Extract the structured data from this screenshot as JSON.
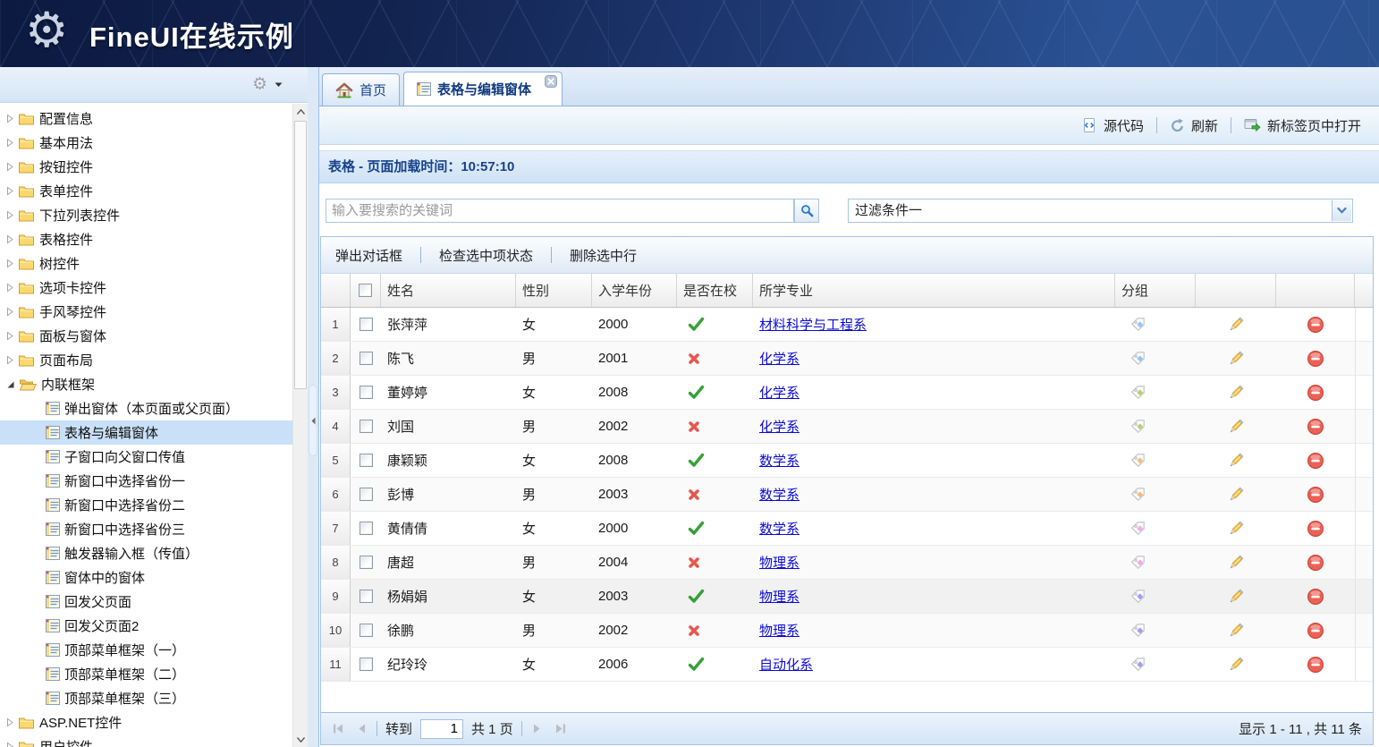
{
  "banner": {
    "title": "FineUI在线示例"
  },
  "sidebar": {
    "items": [
      {
        "type": "folder",
        "label": "配置信息"
      },
      {
        "type": "folder",
        "label": "基本用法"
      },
      {
        "type": "folder",
        "label": "按钮控件"
      },
      {
        "type": "folder",
        "label": "表单控件"
      },
      {
        "type": "folder",
        "label": "下拉列表控件"
      },
      {
        "type": "folder",
        "label": "表格控件"
      },
      {
        "type": "folder",
        "label": "树控件"
      },
      {
        "type": "folder",
        "label": "选项卡控件"
      },
      {
        "type": "folder",
        "label": "手风琴控件"
      },
      {
        "type": "folder",
        "label": "面板与窗体"
      },
      {
        "type": "folder",
        "label": "页面布局"
      },
      {
        "type": "folder-open",
        "label": "内联框架"
      },
      {
        "type": "leaf",
        "label": "弹出窗体（本页面或父页面）"
      },
      {
        "type": "leaf",
        "label": "表格与编辑窗体",
        "selected": true
      },
      {
        "type": "leaf",
        "label": "子窗口向父窗口传值"
      },
      {
        "type": "leaf",
        "label": "新窗口中选择省份一"
      },
      {
        "type": "leaf",
        "label": "新窗口中选择省份二"
      },
      {
        "type": "leaf",
        "label": "新窗口中选择省份三"
      },
      {
        "type": "leaf",
        "label": "触发器输入框（传值）"
      },
      {
        "type": "leaf",
        "label": "窗体中的窗体"
      },
      {
        "type": "leaf",
        "label": "回发父页面"
      },
      {
        "type": "leaf",
        "label": "回发父页面2"
      },
      {
        "type": "leaf",
        "label": "顶部菜单框架（一）"
      },
      {
        "type": "leaf",
        "label": "顶部菜单框架（二）"
      },
      {
        "type": "leaf",
        "label": "顶部菜单框架（三）"
      },
      {
        "type": "folder",
        "label": "ASP.NET控件"
      },
      {
        "type": "folder",
        "label": "用户控件"
      }
    ]
  },
  "tabs": [
    {
      "label": "首页",
      "icon": "home-icon",
      "active": false
    },
    {
      "label": "表格与编辑窗体",
      "icon": "grid-icon",
      "active": true,
      "closable": true
    }
  ],
  "toolbar": {
    "source_label": "源代码",
    "refresh_label": "刷新",
    "newtab_label": "新标签页中打开"
  },
  "panel": {
    "title": "表格 - 页面加载时间：10:57:10"
  },
  "search": {
    "placeholder": "输入要搜索的关键词"
  },
  "filter": {
    "value": "过滤条件一"
  },
  "grid": {
    "buttons": [
      "弹出对话框",
      "检查选中项状态",
      "删除选中行"
    ],
    "columns": {
      "name": "姓名",
      "gender": "性别",
      "year": "入学年份",
      "enrolled": "是否在校",
      "major": "所学专业",
      "group": "分组"
    },
    "rows": [
      {
        "num": "1",
        "name": "张萍萍",
        "gender": "女",
        "year": "2000",
        "enrolled": true,
        "major": "材料科学与工程系",
        "tag_color": "#8fc8f5"
      },
      {
        "num": "2",
        "name": "陈飞",
        "gender": "男",
        "year": "2001",
        "enrolled": false,
        "major": "化学系",
        "tag_color": "#8fc8f5"
      },
      {
        "num": "3",
        "name": "董婷婷",
        "gender": "女",
        "year": "2008",
        "enrolled": true,
        "major": "化学系",
        "tag_color": "#b6d36e"
      },
      {
        "num": "4",
        "name": "刘国",
        "gender": "男",
        "year": "2002",
        "enrolled": false,
        "major": "化学系",
        "tag_color": "#b6d36e"
      },
      {
        "num": "5",
        "name": "康颖颖",
        "gender": "女",
        "year": "2008",
        "enrolled": true,
        "major": "数学系",
        "tag_color": "#f7bd7a"
      },
      {
        "num": "6",
        "name": "彭博",
        "gender": "男",
        "year": "2003",
        "enrolled": false,
        "major": "数学系",
        "tag_color": "#f7bd7a"
      },
      {
        "num": "7",
        "name": "黄倩倩",
        "gender": "女",
        "year": "2000",
        "enrolled": true,
        "major": "数学系",
        "tag_color": "#f6a9ee"
      },
      {
        "num": "8",
        "name": "唐超",
        "gender": "男",
        "year": "2004",
        "enrolled": false,
        "major": "物理系",
        "tag_color": "#f6a9ee"
      },
      {
        "num": "9",
        "name": "杨娟娟",
        "gender": "女",
        "year": "2003",
        "enrolled": true,
        "major": "物理系",
        "tag_color": "#a79cf1"
      },
      {
        "num": "10",
        "name": "徐鹏",
        "gender": "男",
        "year": "2002",
        "enrolled": false,
        "major": "物理系",
        "tag_color": "#a79cf1"
      },
      {
        "num": "11",
        "name": "纪玲玲",
        "gender": "女",
        "year": "2006",
        "enrolled": true,
        "major": "自动化系",
        "tag_color": "#a79cf1"
      }
    ]
  },
  "pager": {
    "goto_label": "转到",
    "page_input": "1",
    "page_total": "共 1 页",
    "summary": "显示 1 - 11 , 共 11 条"
  },
  "colors": {
    "accent": "#15428b",
    "link": "#0b0bd6",
    "enrolled_check": "#35a135",
    "enrolled_cross": "#e6574f",
    "banner_dark": "#0c1a41",
    "banner_light": "#2b5294",
    "selected_tree_item": "#c9e0f8"
  }
}
